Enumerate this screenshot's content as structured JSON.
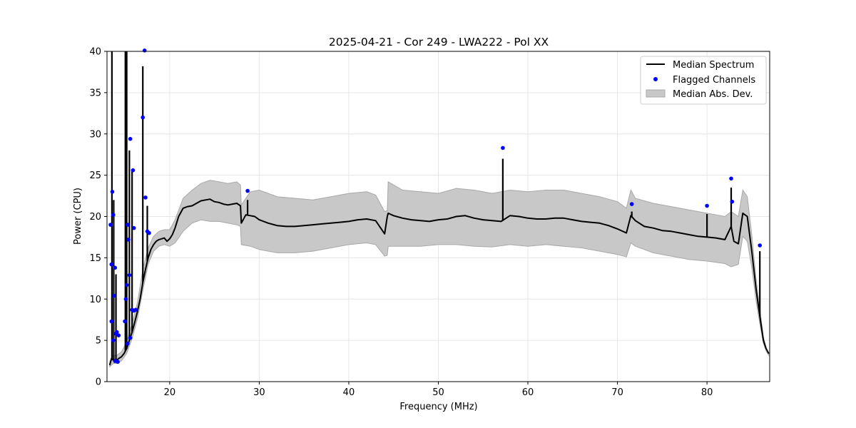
{
  "chart_data": {
    "type": "line",
    "title": "2025-04-21 - Cor 249 - LWA222 - Pol XX",
    "xlabel": "Frequency (MHz)",
    "ylabel": "Power (CPU)",
    "xlim": [
      13,
      87
    ],
    "ylim": [
      0,
      40
    ],
    "xticks": [
      20,
      30,
      40,
      50,
      60,
      70,
      80
    ],
    "yticks": [
      0,
      5,
      10,
      15,
      20,
      25,
      30,
      35,
      40
    ],
    "grid": true,
    "legend_position": "top-right",
    "colors": {
      "median": "#000000",
      "flagged": "#0000ff",
      "mad_fill": "#c8c8c8",
      "mad_edge": "#a8a8a8"
    },
    "series": [
      {
        "name": "Median Spectrum",
        "kind": "line",
        "x": [
          13.3,
          13.5,
          13.7,
          13.9,
          14.1,
          14.3,
          14.6,
          14.9,
          15.2,
          15.5,
          15.8,
          16.1,
          16.4,
          16.7,
          17.0,
          17.3,
          17.6,
          17.9,
          18.2,
          18.5,
          18.8,
          19.1,
          19.4,
          19.7,
          20.0,
          20.3,
          20.6,
          21.0,
          21.5,
          22.0,
          22.5,
          23.0,
          23.5,
          24.0,
          24.5,
          25.0,
          25.5,
          26.0,
          26.5,
          27.0,
          27.5,
          27.9,
          28.0,
          28.5,
          29.0,
          29.5,
          30.0,
          31.0,
          32.0,
          33.0,
          34.0,
          35.0,
          36.0,
          37.0,
          38.0,
          39.0,
          40.0,
          41.0,
          42.0,
          43.0,
          44.0,
          44.3,
          44.4,
          45.0,
          46.0,
          47.0,
          48.0,
          49.0,
          50.0,
          51.0,
          52.0,
          53.0,
          54.0,
          55.0,
          56.0,
          57.0,
          57.3,
          58.0,
          59.0,
          60.0,
          61.0,
          62.0,
          63.0,
          64.0,
          65.0,
          66.0,
          67.0,
          68.0,
          69.0,
          70.0,
          71.0,
          71.5,
          72.0,
          73.0,
          74.0,
          75.0,
          76.0,
          77.0,
          78.0,
          79.0,
          80.0,
          81.0,
          82.0,
          82.7,
          83.0,
          83.5,
          84.0,
          84.5,
          85.0,
          85.5,
          86.0,
          86.3,
          86.6,
          86.9
        ],
        "y": [
          2.0,
          2.8,
          2.6,
          2.5,
          2.6,
          2.8,
          3.0,
          3.4,
          4.0,
          5.0,
          6.0,
          7.2,
          8.5,
          10.0,
          12.0,
          13.6,
          15.0,
          16.0,
          16.6,
          17.0,
          17.2,
          17.3,
          17.4,
          17.0,
          17.3,
          17.8,
          18.6,
          20.0,
          21.0,
          21.2,
          21.3,
          21.6,
          21.9,
          22.0,
          22.1,
          21.8,
          21.7,
          21.5,
          21.4,
          21.5,
          21.6,
          21.3,
          19.2,
          20.2,
          20.1,
          20.0,
          19.6,
          19.2,
          18.9,
          18.8,
          18.8,
          18.9,
          19.0,
          19.1,
          19.2,
          19.3,
          19.4,
          19.6,
          19.7,
          19.5,
          17.9,
          20.0,
          20.4,
          20.1,
          19.8,
          19.6,
          19.5,
          19.4,
          19.6,
          19.7,
          20.0,
          20.1,
          19.8,
          19.6,
          19.5,
          19.4,
          19.6,
          20.1,
          20.0,
          19.8,
          19.7,
          19.7,
          19.8,
          19.8,
          19.6,
          19.4,
          19.3,
          19.2,
          18.9,
          18.5,
          18.0,
          20.1,
          19.5,
          18.8,
          18.6,
          18.3,
          18.2,
          18.0,
          17.8,
          17.6,
          17.5,
          17.4,
          17.2,
          18.8,
          17.0,
          16.7,
          20.4,
          20.0,
          15.8,
          11.0,
          7.2,
          5.0,
          4.0,
          3.4
        ]
      },
      {
        "name": "Flagged Channels",
        "kind": "scatter",
        "x": [
          13.4,
          13.5,
          13.6,
          13.7,
          13.8,
          13.9,
          14.0,
          14.1,
          14.3,
          13.5,
          13.7,
          13.9,
          14.2,
          15.0,
          15.1,
          15.2,
          15.3,
          15.4,
          15.5,
          15.6,
          15.8,
          16.0,
          16.2,
          17.0,
          17.2,
          17.3,
          17.5,
          17.7,
          15.3,
          15.6,
          15.9,
          16.0,
          28.7,
          57.2,
          71.6,
          80.0,
          82.7,
          82.8,
          85.9
        ],
        "y": [
          19.0,
          14.2,
          23.0,
          20.2,
          10.4,
          13.8,
          5.8,
          6.0,
          5.6,
          7.3,
          5.0,
          2.5,
          2.4,
          7.3,
          10.0,
          11.7,
          19.0,
          17.2,
          12.9,
          5.3,
          8.7,
          8.6,
          8.7,
          32.0,
          40.1,
          22.3,
          18.2,
          18.0,
          4.6,
          29.4,
          25.6,
          18.6,
          23.1,
          28.3,
          21.5,
          21.3,
          24.6,
          21.8,
          16.5
        ]
      },
      {
        "name": "Median Abs. Dev.",
        "kind": "band",
        "x": [
          13.3,
          13.7,
          14.1,
          14.6,
          15.2,
          15.8,
          16.4,
          17.0,
          17.6,
          18.2,
          18.8,
          19.4,
          20.0,
          20.6,
          21.5,
          22.5,
          23.5,
          24.5,
          25.5,
          26.5,
          27.5,
          27.9,
          28.0,
          29.0,
          30.0,
          32.0,
          34.0,
          36.0,
          38.0,
          40.0,
          42.0,
          43.0,
          44.0,
          44.3,
          44.4,
          46.0,
          48.0,
          50.0,
          52.0,
          54.0,
          56.0,
          58.0,
          60.0,
          62.0,
          64.0,
          66.0,
          68.0,
          70.0,
          71.0,
          71.5,
          72.0,
          74.0,
          76.0,
          78.0,
          80.0,
          82.0,
          82.7,
          83.5,
          84.0,
          84.5,
          85.0,
          85.5,
          86.0,
          86.3,
          86.6,
          86.9
        ],
        "lower": [
          1.8,
          2.2,
          2.2,
          2.5,
          3.4,
          5.2,
          7.6,
          11.0,
          14.2,
          15.8,
          16.4,
          16.6,
          16.4,
          16.8,
          18.2,
          19.2,
          19.6,
          19.4,
          19.4,
          19.2,
          19.0,
          18.8,
          16.6,
          16.4,
          16.0,
          15.6,
          15.6,
          15.8,
          16.2,
          16.6,
          16.8,
          16.6,
          15.2,
          15.3,
          16.4,
          16.4,
          16.4,
          16.6,
          16.6,
          16.4,
          16.3,
          16.6,
          16.4,
          16.6,
          16.4,
          16.2,
          15.8,
          15.4,
          15.1,
          16.8,
          16.4,
          15.6,
          15.2,
          14.8,
          14.6,
          14.3,
          13.9,
          14.2,
          17.6,
          17.0,
          13.8,
          9.6,
          6.4,
          4.6,
          3.7,
          3.2
        ],
        "upper": [
          2.4,
          3.2,
          3.2,
          3.6,
          4.8,
          7.0,
          9.6,
          13.6,
          16.2,
          17.6,
          18.2,
          18.4,
          18.4,
          19.6,
          22.2,
          23.2,
          24.0,
          24.4,
          24.2,
          24.0,
          24.2,
          23.8,
          21.4,
          23.0,
          23.2,
          22.4,
          22.2,
          22.0,
          22.4,
          22.8,
          23.0,
          22.6,
          20.6,
          20.7,
          24.2,
          23.2,
          23.0,
          22.8,
          23.4,
          23.2,
          22.8,
          23.2,
          23.0,
          23.2,
          23.2,
          22.8,
          22.4,
          21.8,
          21.0,
          23.2,
          22.2,
          21.6,
          21.2,
          20.8,
          20.4,
          20.0,
          20.6,
          20.0,
          23.2,
          22.4,
          17.8,
          12.2,
          8.0,
          5.4,
          4.1,
          3.4
        ]
      }
    ],
    "spikes": [
      {
        "x": 13.55,
        "top": 40.0
      },
      {
        "x": 13.75,
        "top": 22.0
      },
      {
        "x": 14.0,
        "top": 13.0
      },
      {
        "x": 15.05,
        "top": 40.0
      },
      {
        "x": 15.2,
        "top": 40.0
      },
      {
        "x": 15.5,
        "top": 28.0
      },
      {
        "x": 15.8,
        "top": 25.5
      },
      {
        "x": 17.0,
        "top": 38.2
      },
      {
        "x": 17.5,
        "top": 21.3
      },
      {
        "x": 28.7,
        "top": 22.0
      },
      {
        "x": 57.2,
        "top": 27.0
      },
      {
        "x": 71.6,
        "top": 20.6
      },
      {
        "x": 80.0,
        "top": 20.3
      },
      {
        "x": 82.7,
        "top": 23.5
      },
      {
        "x": 85.9,
        "top": 15.8
      }
    ]
  }
}
